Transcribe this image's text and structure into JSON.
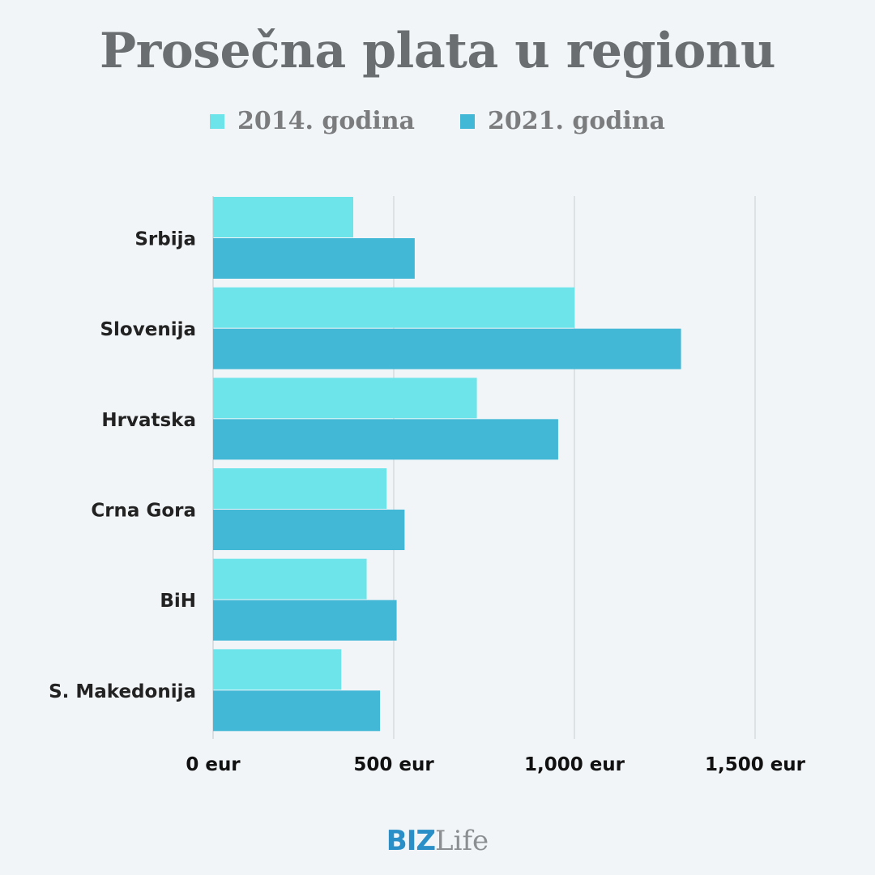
{
  "chart_data": {
    "type": "bar",
    "orientation": "horizontal",
    "title": "Prosečna plata u regionu",
    "categories": [
      "Srbija",
      "Slovenija",
      "Hrvatska",
      "Crna Gora",
      "BiH",
      "S. Makedonija"
    ],
    "series": [
      {
        "name": "2014. godina",
        "color": "#6ce4ea",
        "values": [
          388,
          1000,
          730,
          480,
          425,
          355
        ]
      },
      {
        "name": "2021. godina",
        "color": "#42b8d6",
        "values": [
          558,
          1295,
          955,
          530,
          508,
          462
        ]
      }
    ],
    "x_ticks": [
      0,
      500,
      1000,
      1500
    ],
    "x_tick_labels": [
      "0 eur",
      "500 eur",
      "1,000 eur",
      "1,500 eur"
    ],
    "xlim": [
      0,
      1500
    ],
    "grid": "vertical",
    "legend": "top-center"
  },
  "logo": {
    "biz": "BIZ",
    "life": "Life"
  }
}
